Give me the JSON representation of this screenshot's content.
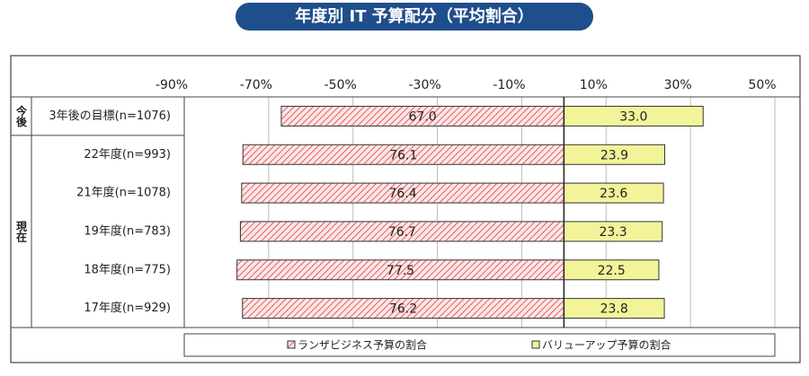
{
  "chart_data": {
    "type": "diverging-bar",
    "title": "年度別 IT 予算配分（平均割合）",
    "categories": [
      "3年後の目標(n=1076)",
      "22年度(n=993)",
      "21年度(n=1078)",
      "19年度(n=783)",
      "18年度(n=775)",
      "17年度(n=929)"
    ],
    "row_groups": [
      "今後",
      "現在",
      "現在",
      "現在",
      "現在",
      "現在"
    ],
    "series": [
      {
        "name": "ランザビジネス予算の割合",
        "color": "#d94040",
        "values": [
          -67.0,
          -76.1,
          -76.4,
          -76.7,
          -77.5,
          -76.2
        ],
        "value_labels": [
          "67.0",
          "76.1",
          "76.4",
          "76.7",
          "77.5",
          "76.2"
        ]
      },
      {
        "name": "バリューアップ予算の割合",
        "color": "#f3f39a",
        "values": [
          33.0,
          23.9,
          23.6,
          23.3,
          22.5,
          23.8
        ],
        "value_labels": [
          "33.0",
          "23.9",
          "23.6",
          "23.3",
          "22.5",
          "23.8"
        ]
      }
    ],
    "xlim": [
      -90,
      50
    ],
    "xticks": [
      {
        "value": -90,
        "label": "-90%"
      },
      {
        "value": -70,
        "label": "-70%"
      },
      {
        "value": -50,
        "label": "-50%"
      },
      {
        "value": -30,
        "label": "-30%"
      },
      {
        "value": -10,
        "label": "-10%"
      },
      {
        "value": 10,
        "label": "10%"
      },
      {
        "value": 30,
        "label": "30%"
      },
      {
        "value": 50,
        "label": "50%"
      }
    ],
    "grid": true
  }
}
